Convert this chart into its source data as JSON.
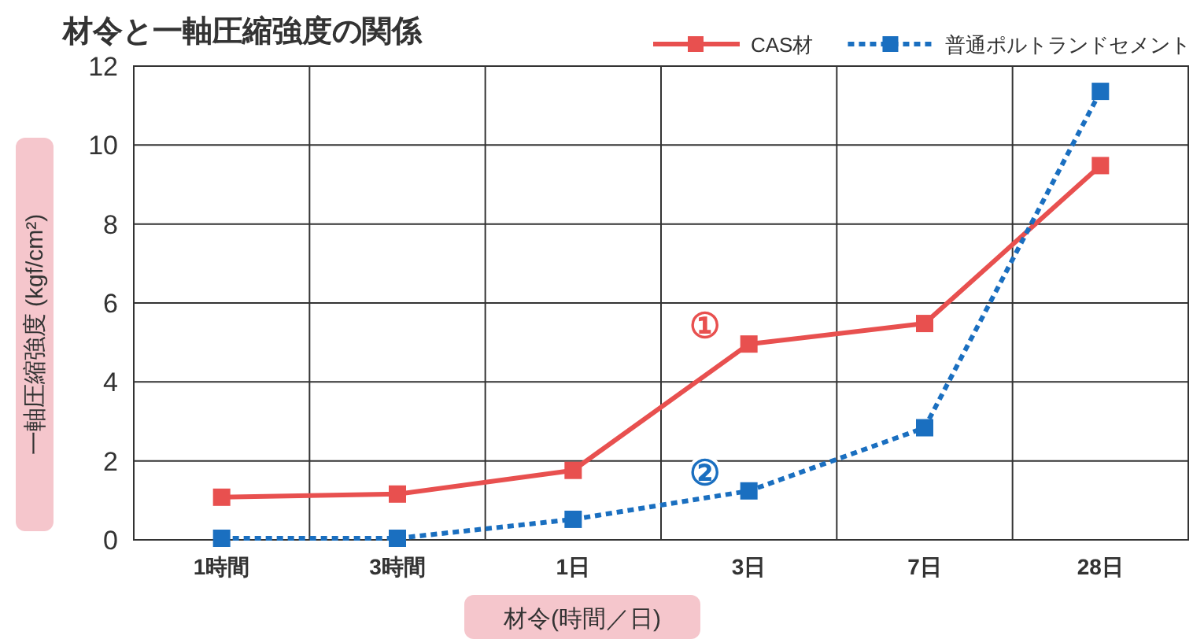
{
  "chart_data": {
    "type": "line",
    "title": "材令と一軸圧縮強度の関係",
    "xlabel": "材令(時間／日)",
    "ylabel": "一軸圧縮強度 (kgf/cm²)",
    "categories": [
      "1時間",
      "3時間",
      "1日",
      "3日",
      "7日",
      "28日"
    ],
    "series": [
      {
        "name": "CAS材",
        "color": "#e8504f",
        "line_style": "solid",
        "values": [
          1.08,
          1.16,
          1.76,
          4.96,
          5.48,
          9.48
        ]
      },
      {
        "name": "普通ポルトランドセメント",
        "color": "#1a6fc0",
        "line_style": "dotted",
        "values": [
          0.04,
          0.04,
          0.52,
          1.24,
          2.84,
          11.36
        ]
      }
    ],
    "annotations": [
      "①",
      "②"
    ],
    "ylim": [
      0,
      12
    ],
    "yticks": [
      0,
      2,
      4,
      6,
      8,
      10,
      12
    ],
    "grid": true,
    "legend": "top right",
    "marker": "square"
  }
}
